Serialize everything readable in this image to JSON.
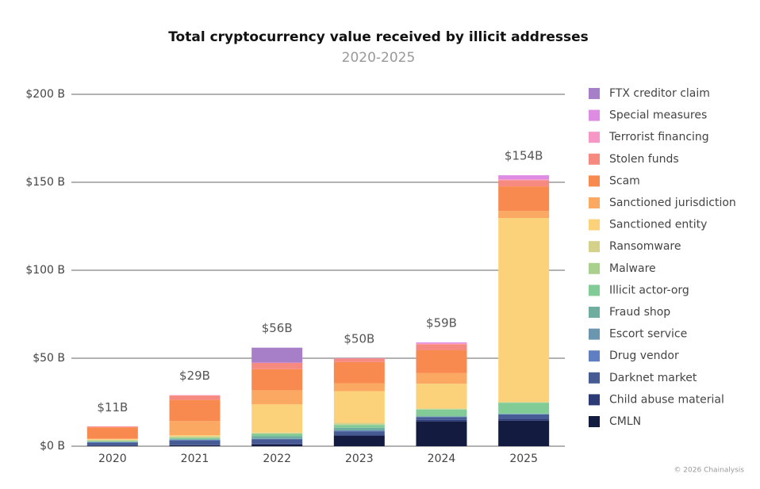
{
  "chart_data": {
    "type": "stacked_bar",
    "title": "Total cryptocurrency value received by illicit addresses",
    "subtitle": "2020-2025",
    "credit": "© 2026 Chainalysis",
    "categories": [
      "2020",
      "2021",
      "2022",
      "2023",
      "2024",
      "2025"
    ],
    "ylim": [
      0,
      200
    ],
    "yticks": [
      {
        "value": 0,
        "label": "$0 B"
      },
      {
        "value": 50,
        "label": "$50 B"
      },
      {
        "value": 100,
        "label": "$100 B"
      },
      {
        "value": 150,
        "label": "$150 B"
      },
      {
        "value": 200,
        "label": "$200 B"
      }
    ],
    "grid": true,
    "legend": "right",
    "totals": {
      "values": [
        11,
        29,
        56,
        50,
        59,
        154
      ],
      "value_labels": [
        "$11B",
        "$29B",
        "$56B",
        "$50B",
        "$59B",
        "$154B"
      ]
    },
    "series": [
      {
        "name": "FTX creditor claim",
        "color": "#a67fc8",
        "values": [
          0,
          0,
          8.5,
          0,
          0,
          0
        ]
      },
      {
        "name": "Special measures",
        "color": "#de8be3",
        "values": [
          0,
          0,
          0,
          0,
          0.5,
          2.3
        ]
      },
      {
        "name": "Terrorist financing",
        "color": "#f797c6",
        "values": [
          0.1,
          0.2,
          0.2,
          0.2,
          0.5,
          0.5
        ]
      },
      {
        "name": "Stolen funds",
        "color": "#f78a80",
        "values": [
          0.5,
          2.5,
          3.5,
          2,
          3.5,
          3.5
        ]
      },
      {
        "name": "Scam",
        "color": "#f98a4f",
        "values": [
          6.5,
          12,
          12,
          12,
          13,
          14
        ]
      },
      {
        "name": "Sanctioned jurisdiction",
        "color": "#fba863",
        "values": [
          0,
          8,
          8,
          4.5,
          6,
          4
        ]
      },
      {
        "name": "Sanctioned entity",
        "color": "#fbd27a",
        "values": [
          0.5,
          0.5,
          16,
          18,
          14,
          104.5
        ]
      },
      {
        "name": "Ransomware",
        "color": "#d6d18a",
        "values": [
          0.5,
          0.8,
          0.5,
          0.8,
          0.4,
          0.3
        ]
      },
      {
        "name": "Malware",
        "color": "#a9d08c",
        "values": [
          0.3,
          0.3,
          0.3,
          0.5,
          0.3,
          0.3
        ]
      },
      {
        "name": "Illicit actor-org",
        "color": "#80cb96",
        "values": [
          0.3,
          0.5,
          1.2,
          1.5,
          3.5,
          6
        ]
      },
      {
        "name": "Fraud shop",
        "color": "#6fae9e",
        "values": [
          0.3,
          0.5,
          1.5,
          1.5,
          0.5,
          0.3
        ]
      },
      {
        "name": "Escort service",
        "color": "#6b96b0",
        "values": [
          0,
          0.1,
          0.1,
          0.2,
          0.1,
          0.1
        ]
      },
      {
        "name": "Drug vendor",
        "color": "#5f7fc2",
        "values": [
          0.3,
          0.3,
          0.2,
          0.3,
          0.2,
          0.2
        ]
      },
      {
        "name": "Darknet market",
        "color": "#465a94",
        "values": [
          1.5,
          2.5,
          2.5,
          2,
          1.5,
          2.5
        ]
      },
      {
        "name": "Child abuse material",
        "color": "#2c3a78",
        "values": [
          0.2,
          0.3,
          0.5,
          0.5,
          1,
          1
        ]
      },
      {
        "name": "CMLN",
        "color": "#131b40",
        "values": [
          0.3,
          0.5,
          1,
          6,
          14,
          14.5
        ]
      }
    ]
  }
}
